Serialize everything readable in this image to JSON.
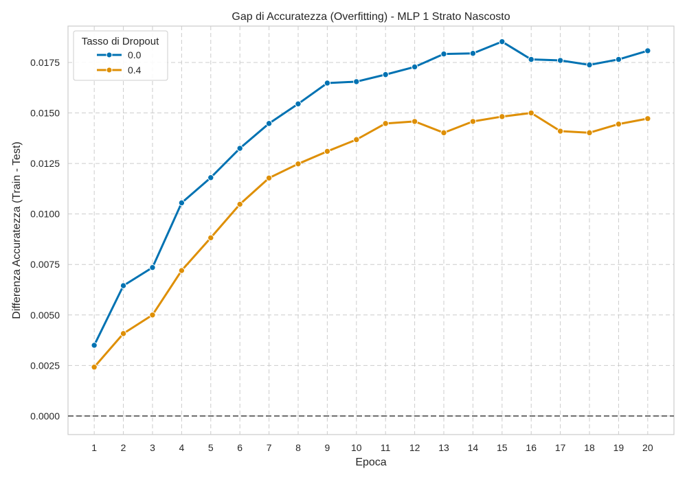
{
  "chart_data": {
    "type": "line",
    "title": "Gap di Accuratezza (Overfitting) - MLP 1 Strato Nascosto",
    "xlabel": "Epoca",
    "ylabel": "Differenza Accuratezza (Train - Test)",
    "x": [
      1,
      2,
      3,
      4,
      5,
      6,
      7,
      8,
      9,
      10,
      11,
      12,
      13,
      14,
      15,
      16,
      17,
      18,
      19,
      20
    ],
    "x_tick_labels": [
      "1",
      "2",
      "3",
      "4",
      "5",
      "6",
      "7",
      "8",
      "9",
      "10",
      "11",
      "12",
      "13",
      "14",
      "15",
      "16",
      "17",
      "18",
      "19",
      "20"
    ],
    "xlim": [
      0.1,
      20.9
    ],
    "ylim": [
      -0.00092,
      0.0193
    ],
    "y_ticks": [
      0,
      0.0025,
      0.005,
      0.0075,
      0.01,
      0.0125,
      0.015,
      0.0175
    ],
    "y_tick_labels": [
      "0.0000",
      "0.0025",
      "0.0050",
      "0.0075",
      "0.0100",
      "0.0125",
      "0.0150",
      "0.0175"
    ],
    "grid": true,
    "reference_line": {
      "y": 0,
      "style": "dashed",
      "color": "#4d4d4d"
    },
    "legend": {
      "title": "Tasso di Dropout",
      "placement": "top-left"
    },
    "series": [
      {
        "name": "0.0",
        "color": "#0072b2",
        "values": [
          0.0035,
          0.00645,
          0.00735,
          0.01055,
          0.0118,
          0.01325,
          0.01448,
          0.01545,
          0.01648,
          0.01655,
          0.0169,
          0.01728,
          0.01792,
          0.01795,
          0.01853,
          0.01765,
          0.0176,
          0.01738,
          0.01765,
          0.01808
        ]
      },
      {
        "name": "0.4",
        "color": "#de8f05",
        "values": [
          0.00242,
          0.00408,
          0.005,
          0.0072,
          0.00882,
          0.01048,
          0.01178,
          0.01248,
          0.0131,
          0.01368,
          0.01448,
          0.01458,
          0.01402,
          0.01458,
          0.01482,
          0.015,
          0.0141,
          0.01402,
          0.01445,
          0.01472
        ]
      }
    ]
  }
}
